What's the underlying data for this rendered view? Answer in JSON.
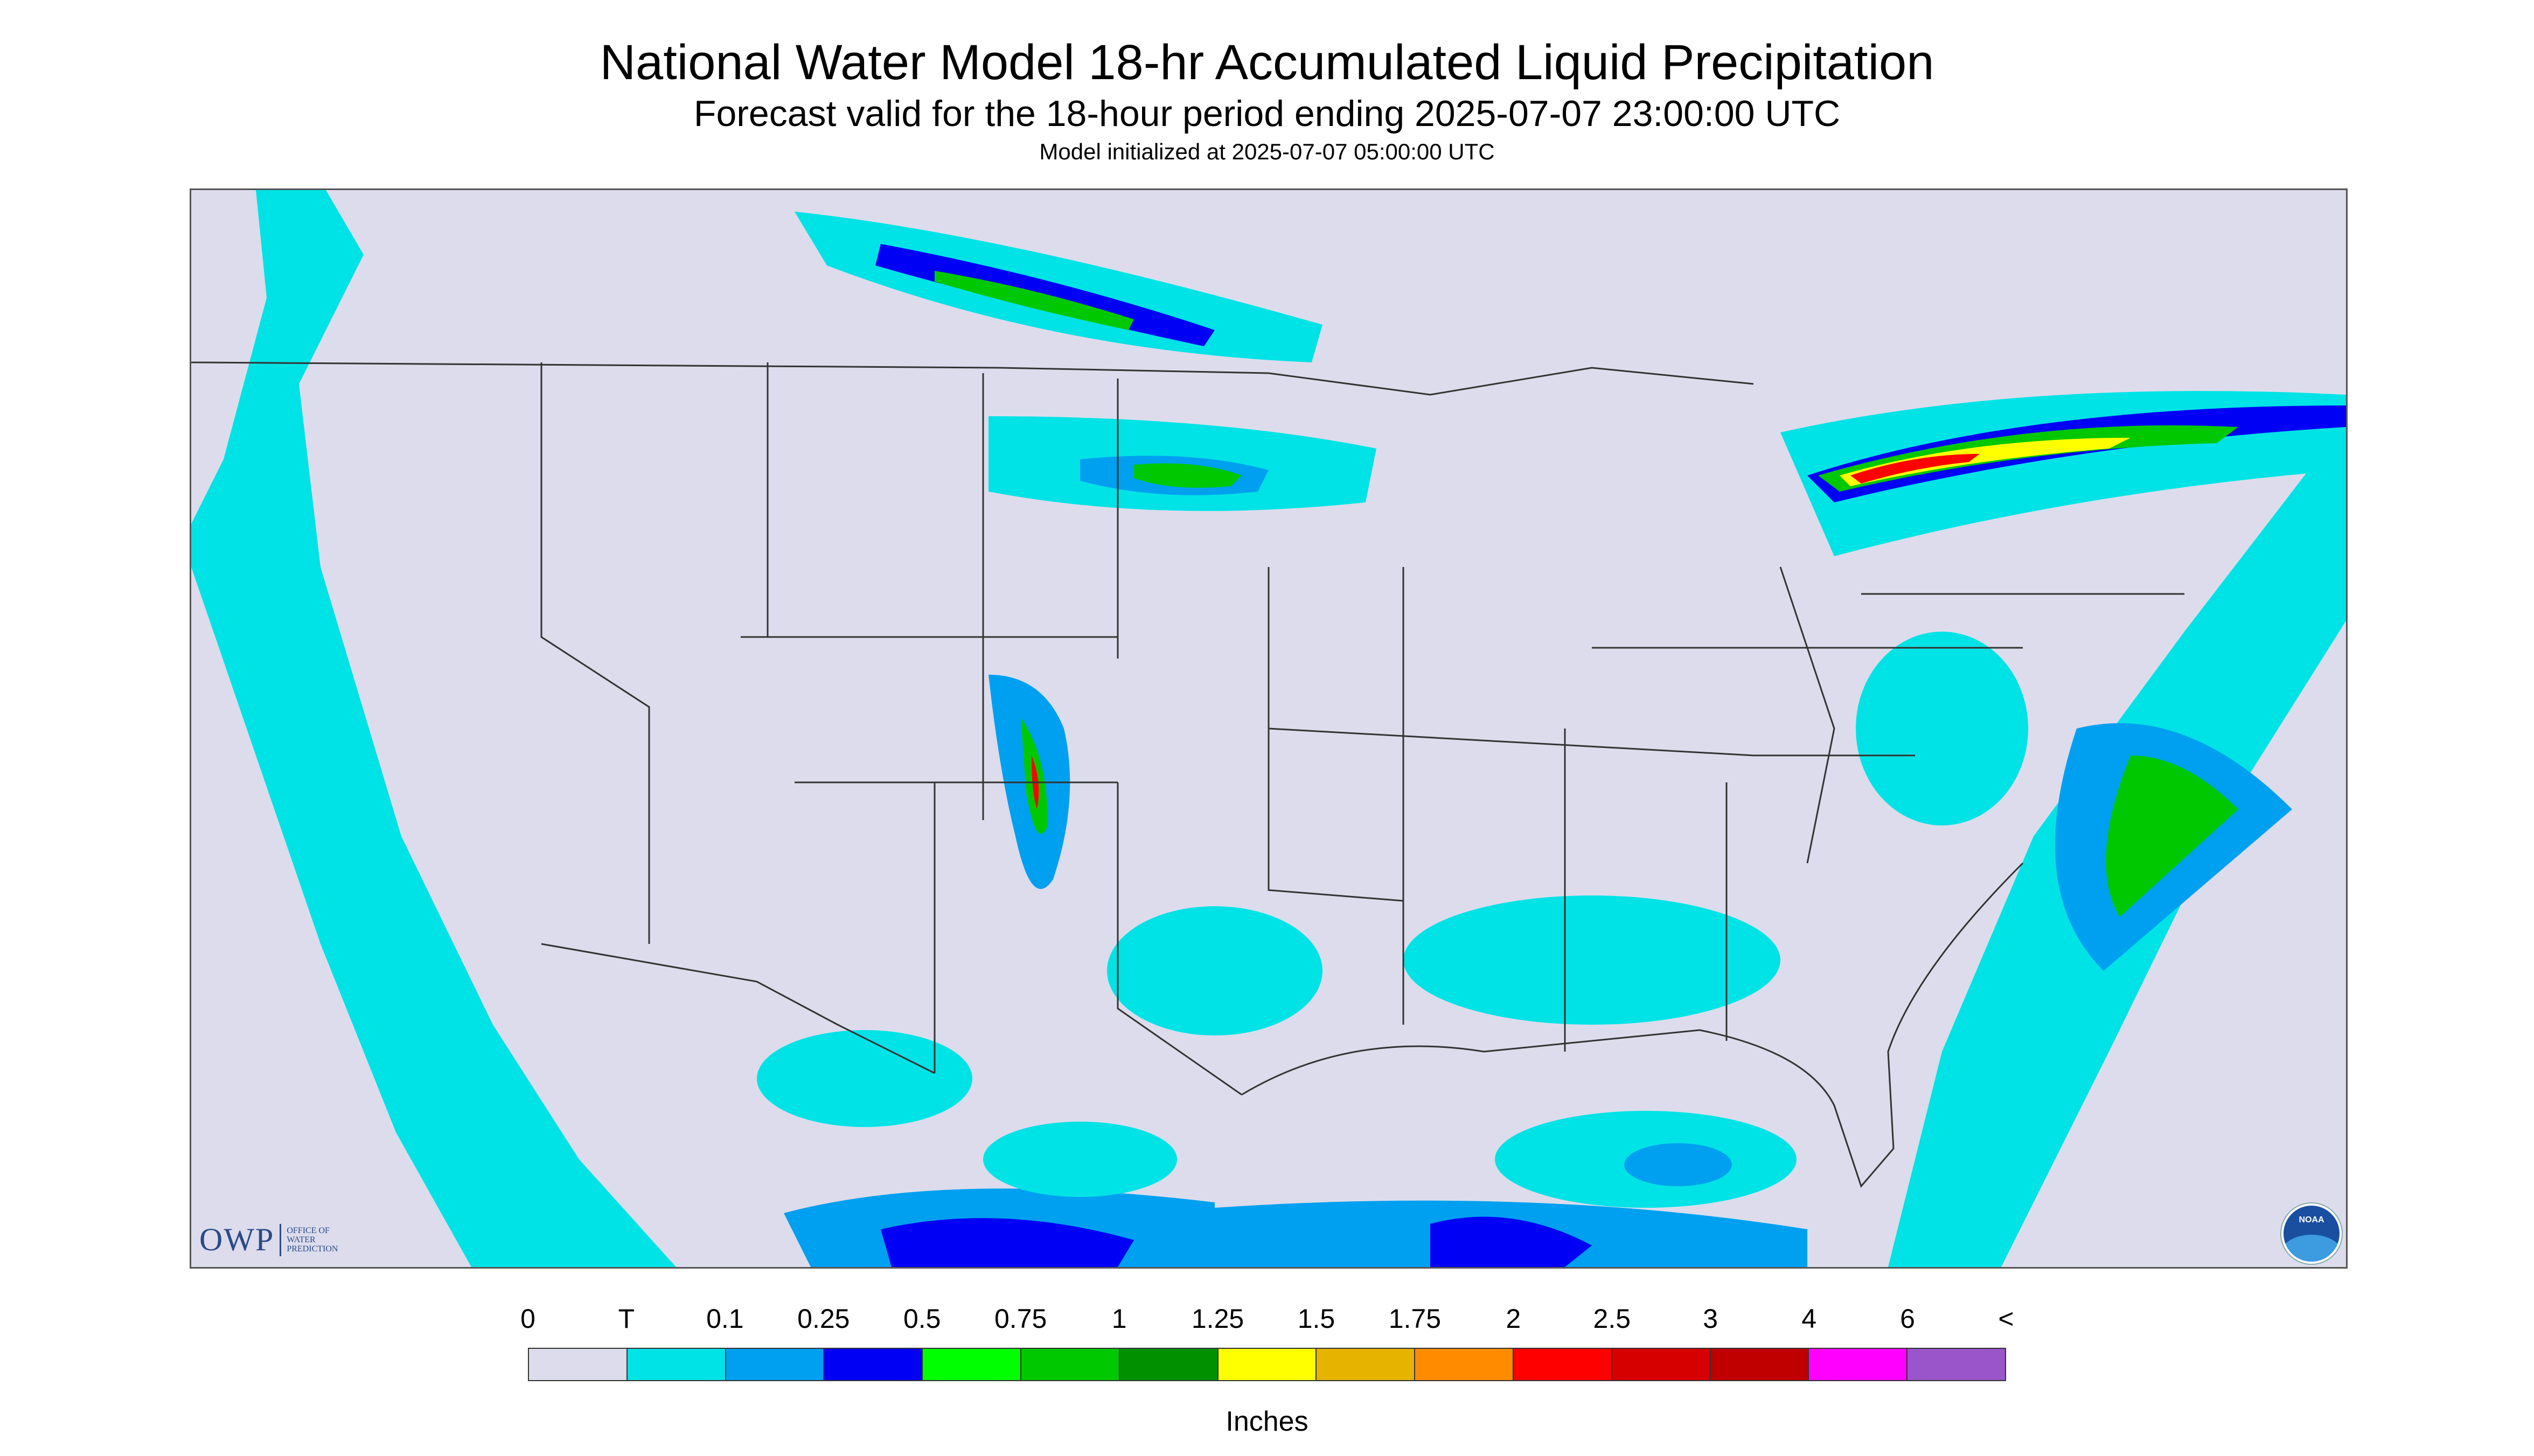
{
  "header": {
    "title": "National Water Model 18-hr Accumulated Liquid Precipitation",
    "subtitle": "Forecast valid for the 18-hour period ending 2025-07-07 23:00:00 UTC",
    "init": "Model initialized at 2025-07-07 05:00:00 UTC"
  },
  "map": {
    "background_color": "#dcdcec",
    "boundary_color": "#333333",
    "region": "CONUS"
  },
  "logos": {
    "owp_big": "OWP",
    "owp_small": [
      "OFFICE OF",
      "WATER",
      "PREDICTION"
    ],
    "noaa": "NOAA",
    "noaa_icon": "noaa-logo-icon"
  },
  "legend": {
    "labels": [
      "0",
      "T",
      "0.1",
      "0.25",
      "0.5",
      "0.75",
      "1",
      "1.25",
      "1.5",
      "1.75",
      "2",
      "2.5",
      "3",
      "4",
      "6",
      "<"
    ],
    "colors": [
      "#dcdcec",
      "#00e3e6",
      "#00a0f0",
      "#0000f5",
      "#00ff00",
      "#00c800",
      "#009000",
      "#ffff00",
      "#e6b400",
      "#ff8c00",
      "#ff0000",
      "#d70000",
      "#c00000",
      "#ff00ff",
      "#9955c9"
    ],
    "units": "Inches"
  }
}
